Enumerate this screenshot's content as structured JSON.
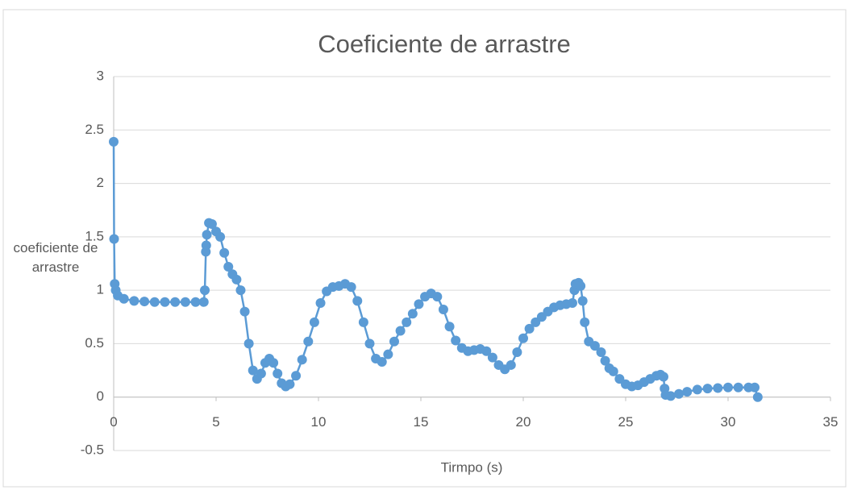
{
  "chart_data": {
    "type": "scatter",
    "title": "Coeficiente de arrastre",
    "x_label": "Tirmpo (s)",
    "y_label": "coeficiente de arrastre",
    "xlim": [
      0,
      35
    ],
    "xticks": [
      0,
      5,
      10,
      15,
      20,
      25,
      30,
      35
    ],
    "ylim": [
      -0.5,
      3
    ],
    "yticks": [
      -0.5,
      0,
      0.5,
      1,
      1.5,
      2,
      2.5,
      3
    ],
    "grid": true,
    "series": [
      {
        "name": "coeficiente de arrastre",
        "color": "#5b9bd5",
        "x": [
          0,
          0.02,
          0.05,
          0.1,
          0.2,
          0.5,
          1,
          1.5,
          2,
          2.5,
          3,
          3.5,
          4,
          4.4,
          4.45,
          4.5,
          4.52,
          4.55,
          4.65,
          4.8,
          5.0,
          5.2,
          5.4,
          5.6,
          5.8,
          6.0,
          6.2,
          6.4,
          6.6,
          6.8,
          7.0,
          7.2,
          7.4,
          7.6,
          7.8,
          8.0,
          8.2,
          8.4,
          8.6,
          8.9,
          9.2,
          9.5,
          9.8,
          10.1,
          10.4,
          10.7,
          11.0,
          11.3,
          11.6,
          11.9,
          12.2,
          12.5,
          12.8,
          13.1,
          13.4,
          13.7,
          14.0,
          14.3,
          14.6,
          14.9,
          15.2,
          15.5,
          15.8,
          16.1,
          16.4,
          16.7,
          17.0,
          17.3,
          17.6,
          17.9,
          18.2,
          18.5,
          18.8,
          19.1,
          19.4,
          19.7,
          20.0,
          20.3,
          20.6,
          20.9,
          21.2,
          21.5,
          21.8,
          22.1,
          22.4,
          22.5,
          22.55,
          22.7,
          22.8,
          22.9,
          23.0,
          23.2,
          23.5,
          23.8,
          24.0,
          24.2,
          24.4,
          24.7,
          25.0,
          25.3,
          25.6,
          25.9,
          26.2,
          26.5,
          26.7,
          26.85,
          26.9,
          26.95,
          27.2,
          27.6,
          28.0,
          28.5,
          29.0,
          29.5,
          30.0,
          30.5,
          31.0,
          31.3,
          31.45
        ],
        "values": [
          2.39,
          1.48,
          1.06,
          1.0,
          0.95,
          0.92,
          0.9,
          0.895,
          0.89,
          0.89,
          0.89,
          0.89,
          0.89,
          0.89,
          1.0,
          1.36,
          1.42,
          1.52,
          1.63,
          1.62,
          1.55,
          1.5,
          1.35,
          1.22,
          1.15,
          1.1,
          1.0,
          0.8,
          0.5,
          0.25,
          0.17,
          0.22,
          0.32,
          0.36,
          0.32,
          0.22,
          0.13,
          0.1,
          0.12,
          0.2,
          0.35,
          0.52,
          0.7,
          0.88,
          0.99,
          1.03,
          1.04,
          1.06,
          1.03,
          0.9,
          0.7,
          0.5,
          0.36,
          0.33,
          0.4,
          0.52,
          0.62,
          0.7,
          0.78,
          0.87,
          0.94,
          0.97,
          0.94,
          0.82,
          0.66,
          0.53,
          0.46,
          0.43,
          0.44,
          0.45,
          0.43,
          0.37,
          0.3,
          0.26,
          0.3,
          0.42,
          0.55,
          0.64,
          0.7,
          0.75,
          0.8,
          0.84,
          0.86,
          0.87,
          0.88,
          1.0,
          1.06,
          1.07,
          1.04,
          0.9,
          0.7,
          0.52,
          0.48,
          0.42,
          0.34,
          0.27,
          0.24,
          0.17,
          0.12,
          0.1,
          0.11,
          0.14,
          0.17,
          0.2,
          0.21,
          0.19,
          0.08,
          0.02,
          0.01,
          0.03,
          0.05,
          0.07,
          0.08,
          0.085,
          0.09,
          0.09,
          0.09,
          0.09,
          0.0
        ]
      }
    ]
  }
}
